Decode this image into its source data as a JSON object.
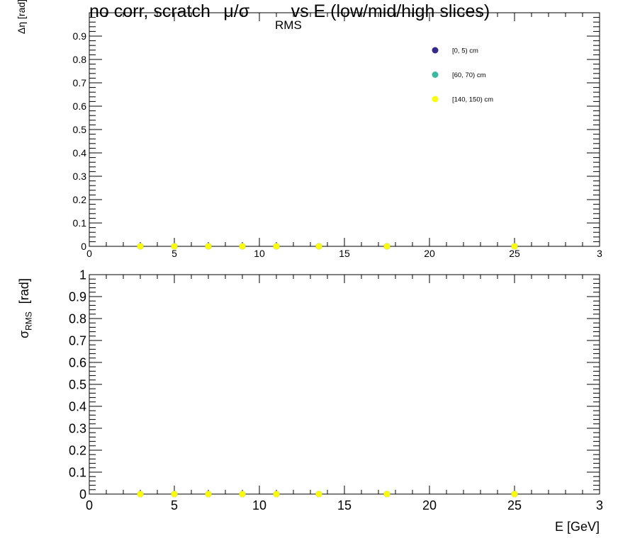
{
  "title": "no corr, scratch",
  "title_quantity": "μ/σ",
  "title_subscript": "RMS",
  "title_suffix": "vs E  (low/mid/high slices)",
  "colors": {
    "series_0_5": "#352a87",
    "series_60_70": "#3cb8a0",
    "series_140_150": "#f9fb0e",
    "axis": "#000000",
    "background": "#ffffff"
  },
  "chart_data": [
    {
      "type": "scatter",
      "panel": "top",
      "ylabel": "Δη  [rad]",
      "xlabel": "",
      "xlim": [
        0,
        30
      ],
      "ylim": [
        0,
        1
      ],
      "x_tick_labels": [
        "0",
        "5",
        "10",
        "15",
        "20",
        "25",
        "3"
      ],
      "y_tick_labels": [
        "0",
        "0.1",
        "0.2",
        "0.3",
        "0.4",
        "0.5",
        "0.6",
        "0.7",
        "0.8",
        "0.9"
      ],
      "legend_position": "top-right",
      "series": [
        {
          "name": "[0, 5) cm",
          "x": [
            3,
            5,
            7,
            9,
            11,
            13.5,
            17.5,
            25
          ],
          "y": [
            0,
            0,
            0,
            0,
            0,
            0,
            0,
            0
          ]
        },
        {
          "name": "[60, 70) cm",
          "x": [
            3,
            5,
            7,
            9,
            11,
            13.5,
            17.5,
            25
          ],
          "y": [
            0,
            0,
            0,
            0,
            0,
            0,
            0,
            0
          ]
        },
        {
          "name": "[140, 150) cm",
          "x": [
            3,
            5,
            7,
            9,
            11,
            13.5,
            17.5,
            25
          ],
          "y": [
            0,
            0,
            0,
            0,
            0,
            0,
            0,
            0
          ]
        }
      ]
    },
    {
      "type": "scatter",
      "panel": "bottom",
      "ylabel": "σ",
      "ylabel_subscript": "RMS",
      "ylabel_unit": "[rad]",
      "xlabel": "E  [GeV]",
      "xlim": [
        0,
        30
      ],
      "ylim": [
        0,
        1
      ],
      "x_tick_labels": [
        "0",
        "5",
        "10",
        "15",
        "20",
        "25",
        "3"
      ],
      "y_tick_labels": [
        "0",
        "0.1",
        "0.2",
        "0.3",
        "0.4",
        "0.5",
        "0.6",
        "0.7",
        "0.8",
        "0.9",
        "1"
      ],
      "series": [
        {
          "name": "[0, 5) cm",
          "x": [
            3,
            5,
            7,
            9,
            11,
            13.5,
            17.5,
            25
          ],
          "y": [
            0,
            0,
            0,
            0,
            0,
            0,
            0,
            0
          ]
        },
        {
          "name": "[60, 70) cm",
          "x": [
            3,
            5,
            7,
            9,
            11,
            13.5,
            17.5,
            25
          ],
          "y": [
            0,
            0,
            0,
            0,
            0,
            0,
            0,
            0
          ]
        },
        {
          "name": "[140, 150) cm",
          "x": [
            3,
            5,
            7,
            9,
            11,
            13.5,
            17.5,
            25
          ],
          "y": [
            0,
            0,
            0,
            0,
            0,
            0,
            0,
            0
          ]
        }
      ]
    }
  ]
}
